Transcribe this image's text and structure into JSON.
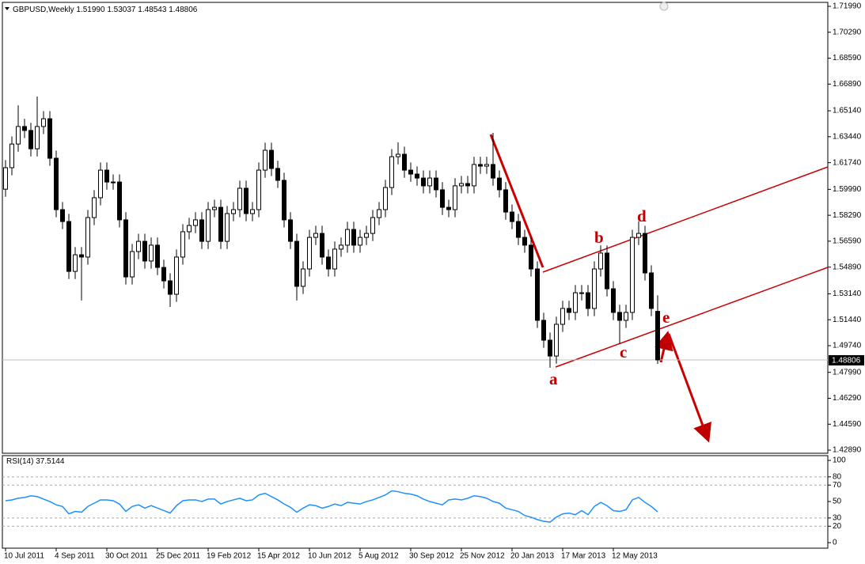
{
  "chart_data": [
    {
      "type": "candlestick",
      "title": "GBPUSD,Weekly",
      "header_ohlc": [
        "1.51990",
        "1.53037",
        "1.48543",
        "1.48806"
      ],
      "categories": [
        "10 Jul 2011",
        null,
        null,
        null,
        null,
        null,
        null,
        null,
        "4 Sep 2011",
        null,
        null,
        null,
        null,
        null,
        null,
        null,
        "30 Oct 2011",
        null,
        null,
        null,
        null,
        null,
        null,
        null,
        "25 Dec 2011",
        null,
        null,
        null,
        null,
        null,
        null,
        null,
        "19 Feb 2012",
        null,
        null,
        null,
        null,
        null,
        null,
        null,
        "15 Apr 2012",
        null,
        null,
        null,
        null,
        null,
        null,
        null,
        "10 Jun 2012",
        null,
        null,
        null,
        null,
        null,
        null,
        null,
        "5 Aug 2012",
        null,
        null,
        null,
        null,
        null,
        null,
        null,
        "30 Sep 2012",
        null,
        null,
        null,
        null,
        null,
        null,
        null,
        "25 Nov 2012",
        null,
        null,
        null,
        null,
        null,
        null,
        null,
        "20 Jan 2013",
        null,
        null,
        null,
        null,
        null,
        null,
        null,
        "17 Mar 2013",
        null,
        null,
        null,
        null,
        null,
        null,
        null,
        "12 May 2013",
        null,
        null,
        null,
        null,
        null,
        null,
        null
      ],
      "open": [
        1.6,
        1.6141,
        1.6296,
        1.6411,
        1.6385,
        1.6265,
        1.6411,
        1.6462,
        1.6203,
        1.5866,
        1.5788,
        1.5461,
        1.557,
        1.5555,
        1.5814,
        1.5944,
        1.6125,
        1.6047,
        1.6047,
        1.5799,
        1.5425,
        1.5591,
        1.5658,
        1.5529,
        1.5633,
        1.5487,
        1.5399,
        1.5311,
        1.5555,
        1.5721,
        1.5762,
        1.5799,
        1.5658,
        1.5866,
        1.5881,
        1.5658,
        1.584,
        1.5866,
        1.6006,
        1.584,
        1.5866,
        1.6125,
        1.6255,
        1.6136,
        1.6058,
        1.5799,
        1.5658,
        1.5363,
        1.5477,
        1.5684,
        1.571,
        1.5555,
        1.5477,
        1.5607,
        1.5633,
        1.5736,
        1.5633,
        1.5684,
        1.571,
        1.5814,
        1.5866,
        1.6011,
        1.6213,
        1.6229,
        1.6125,
        1.6099,
        1.6073,
        1.6022,
        1.6073,
        1.5996,
        1.5881,
        1.5866,
        1.6022,
        1.6037,
        1.6022,
        1.6162,
        1.6151,
        1.6162,
        1.6073,
        1.5996,
        1.585,
        1.5788,
        1.5684,
        1.5633,
        1.5477,
        1.514,
        1.501,
        1.4906,
        1.5114,
        1.5218,
        1.5192,
        1.5321,
        1.5321,
        1.5218,
        1.5477,
        1.5581,
        1.5347,
        1.5192,
        1.514,
        1.5192,
        1.5684,
        1.571,
        1.5451,
        1.5199
      ],
      "high": [
        1.6191,
        1.6346,
        1.655,
        1.6461,
        1.6435,
        1.6608,
        1.6512,
        1.6512,
        1.6253,
        1.5916,
        1.5838,
        1.562,
        1.562,
        1.5864,
        1.5994,
        1.6175,
        1.6175,
        1.6097,
        1.6097,
        1.5849,
        1.5641,
        1.5708,
        1.5708,
        1.5683,
        1.5683,
        1.5537,
        1.5449,
        1.5605,
        1.5771,
        1.5812,
        1.5849,
        1.5849,
        1.5916,
        1.5931,
        1.5931,
        1.589,
        1.5916,
        1.6056,
        1.6056,
        1.5916,
        1.6175,
        1.6305,
        1.6305,
        1.6186,
        1.6108,
        1.5849,
        1.5708,
        1.5527,
        1.5734,
        1.576,
        1.576,
        1.5605,
        1.5657,
        1.5683,
        1.5786,
        1.5786,
        1.5734,
        1.576,
        1.5864,
        1.5916,
        1.6061,
        1.6263,
        1.6307,
        1.6279,
        1.6175,
        1.6149,
        1.6123,
        1.6123,
        1.6123,
        1.6046,
        1.5931,
        1.6072,
        1.6087,
        1.6087,
        1.6212,
        1.6212,
        1.6212,
        1.6369,
        1.6123,
        1.6046,
        1.59,
        1.5838,
        1.5734,
        1.5683,
        1.5527,
        1.519,
        1.506,
        1.5164,
        1.5268,
        1.5268,
        1.5371,
        1.5371,
        1.5371,
        1.5527,
        1.5631,
        1.5631,
        1.5397,
        1.5242,
        1.5242,
        1.5734,
        1.579,
        1.576,
        1.5501,
        1.53037
      ],
      "low": [
        1.595,
        1.6091,
        1.6246,
        1.6335,
        1.6215,
        1.6215,
        1.6361,
        1.6153,
        1.5816,
        1.5738,
        1.5411,
        1.5411,
        1.527,
        1.5505,
        1.5764,
        1.5894,
        1.5997,
        1.5997,
        1.5749,
        1.5375,
        1.5375,
        1.5541,
        1.5479,
        1.5479,
        1.5437,
        1.5349,
        1.5228,
        1.5261,
        1.5505,
        1.5671,
        1.5712,
        1.5608,
        1.5608,
        1.5816,
        1.5608,
        1.5608,
        1.579,
        1.5816,
        1.579,
        1.579,
        1.5816,
        1.6075,
        1.6086,
        1.6008,
        1.5749,
        1.5608,
        1.527,
        1.5313,
        1.5427,
        1.5634,
        1.5505,
        1.5427,
        1.5427,
        1.5557,
        1.5583,
        1.5583,
        1.5583,
        1.5634,
        1.566,
        1.5764,
        1.5816,
        1.5961,
        1.6163,
        1.6075,
        1.6049,
        1.6023,
        1.5972,
        1.5972,
        1.5946,
        1.5831,
        1.5816,
        1.5816,
        1.5972,
        1.5972,
        1.5972,
        1.6101,
        1.6101,
        1.6023,
        1.5946,
        1.58,
        1.5738,
        1.5634,
        1.5583,
        1.5427,
        1.509,
        1.496,
        1.4829,
        1.4856,
        1.5064,
        1.5142,
        1.5142,
        1.5271,
        1.5168,
        1.5168,
        1.5427,
        1.5297,
        1.5142,
        1.4988,
        1.509,
        1.5142,
        1.5634,
        1.5401,
        1.5168,
        1.48543
      ],
      "close": [
        1.6141,
        1.6296,
        1.6411,
        1.6385,
        1.6265,
        1.6411,
        1.6462,
        1.6203,
        1.5866,
        1.5788,
        1.5461,
        1.557,
        1.5555,
        1.5814,
        1.5944,
        1.6125,
        1.6047,
        1.6047,
        1.5799,
        1.5425,
        1.5591,
        1.5658,
        1.5529,
        1.5633,
        1.5487,
        1.5399,
        1.5311,
        1.5555,
        1.5721,
        1.5762,
        1.5799,
        1.5658,
        1.5866,
        1.5881,
        1.5658,
        1.584,
        1.5866,
        1.6006,
        1.584,
        1.5866,
        1.6125,
        1.6255,
        1.6136,
        1.6058,
        1.5799,
        1.5658,
        1.5363,
        1.5477,
        1.5684,
        1.571,
        1.5555,
        1.5477,
        1.5607,
        1.5633,
        1.5736,
        1.5633,
        1.5684,
        1.571,
        1.5814,
        1.5866,
        1.6011,
        1.6213,
        1.6229,
        1.6125,
        1.6099,
        1.6073,
        1.6022,
        1.6073,
        1.5996,
        1.5881,
        1.5866,
        1.6022,
        1.6037,
        1.6022,
        1.6162,
        1.6151,
        1.6162,
        1.6073,
        1.5996,
        1.585,
        1.5788,
        1.5684,
        1.5633,
        1.5477,
        1.514,
        1.501,
        1.4906,
        1.5114,
        1.5218,
        1.5192,
        1.5321,
        1.5321,
        1.5218,
        1.5477,
        1.5581,
        1.5347,
        1.5192,
        1.514,
        1.5192,
        1.5684,
        1.571,
        1.5451,
        1.5218,
        1.48806
      ],
      "ylim": [
        1.42685,
        1.72249
      ],
      "yticks": [
        {
          "value": 1.7199,
          "label": "1.71990"
        },
        {
          "value": 1.7029,
          "label": "1.70290"
        },
        {
          "value": 1.6859,
          "label": "1.68590"
        },
        {
          "value": 1.6689,
          "label": "1.66890"
        },
        {
          "value": 1.6514,
          "label": "1.65140"
        },
        {
          "value": 1.6344,
          "label": "1.63440"
        },
        {
          "value": 1.6174,
          "label": "1.61740"
        },
        {
          "value": 1.5999,
          "label": "1.59990"
        },
        {
          "value": 1.5829,
          "label": "1.58290"
        },
        {
          "value": 1.5659,
          "label": "1.56590"
        },
        {
          "value": 1.5489,
          "label": "1.54890"
        },
        {
          "value": 1.5314,
          "label": "1.53140"
        },
        {
          "value": 1.5144,
          "label": "1.51440"
        },
        {
          "value": 1.4974,
          "label": "1.49740"
        },
        {
          "value": 1.4799,
          "label": "1.47990"
        },
        {
          "value": 1.4629,
          "label": "1.46290"
        },
        {
          "value": 1.4459,
          "label": "1.44590"
        },
        {
          "value": 1.4289,
          "label": "1.42890"
        }
      ],
      "current_price": {
        "value": 1.48806,
        "label": "1.48806"
      },
      "annotations": [
        "a",
        "b",
        "c",
        "d",
        "e"
      ]
    },
    {
      "type": "line",
      "title": "RSI(14)",
      "color": "#1e90ff",
      "values": [
        51,
        52,
        54,
        55,
        57,
        56,
        53,
        50,
        46,
        44,
        35,
        38,
        37,
        44,
        48,
        52,
        52,
        51,
        47,
        38,
        44,
        46,
        42,
        45,
        42,
        39,
        36,
        45,
        51,
        52,
        52,
        50,
        53,
        53,
        47,
        50,
        52,
        54,
        51,
        52,
        58,
        60,
        56,
        52,
        47,
        43,
        37,
        42,
        46,
        45,
        42,
        44,
        47,
        45,
        49,
        48,
        47,
        50,
        52,
        55,
        58,
        63,
        62,
        60,
        59,
        57,
        53,
        50,
        48,
        46,
        52,
        53,
        52,
        54,
        57,
        56,
        54,
        50,
        48,
        42,
        40,
        38,
        33,
        31,
        28,
        26,
        25,
        31,
        35,
        36,
        34,
        39,
        34,
        44,
        49,
        45,
        39,
        38,
        40,
        52,
        55,
        49,
        44,
        37.5144
      ],
      "ylim": [
        -6.7,
        105.8
      ],
      "yticks": [
        100,
        80,
        70,
        50,
        30,
        20,
        0
      ],
      "levels": [
        80,
        70,
        30,
        20
      ]
    }
  ]
}
